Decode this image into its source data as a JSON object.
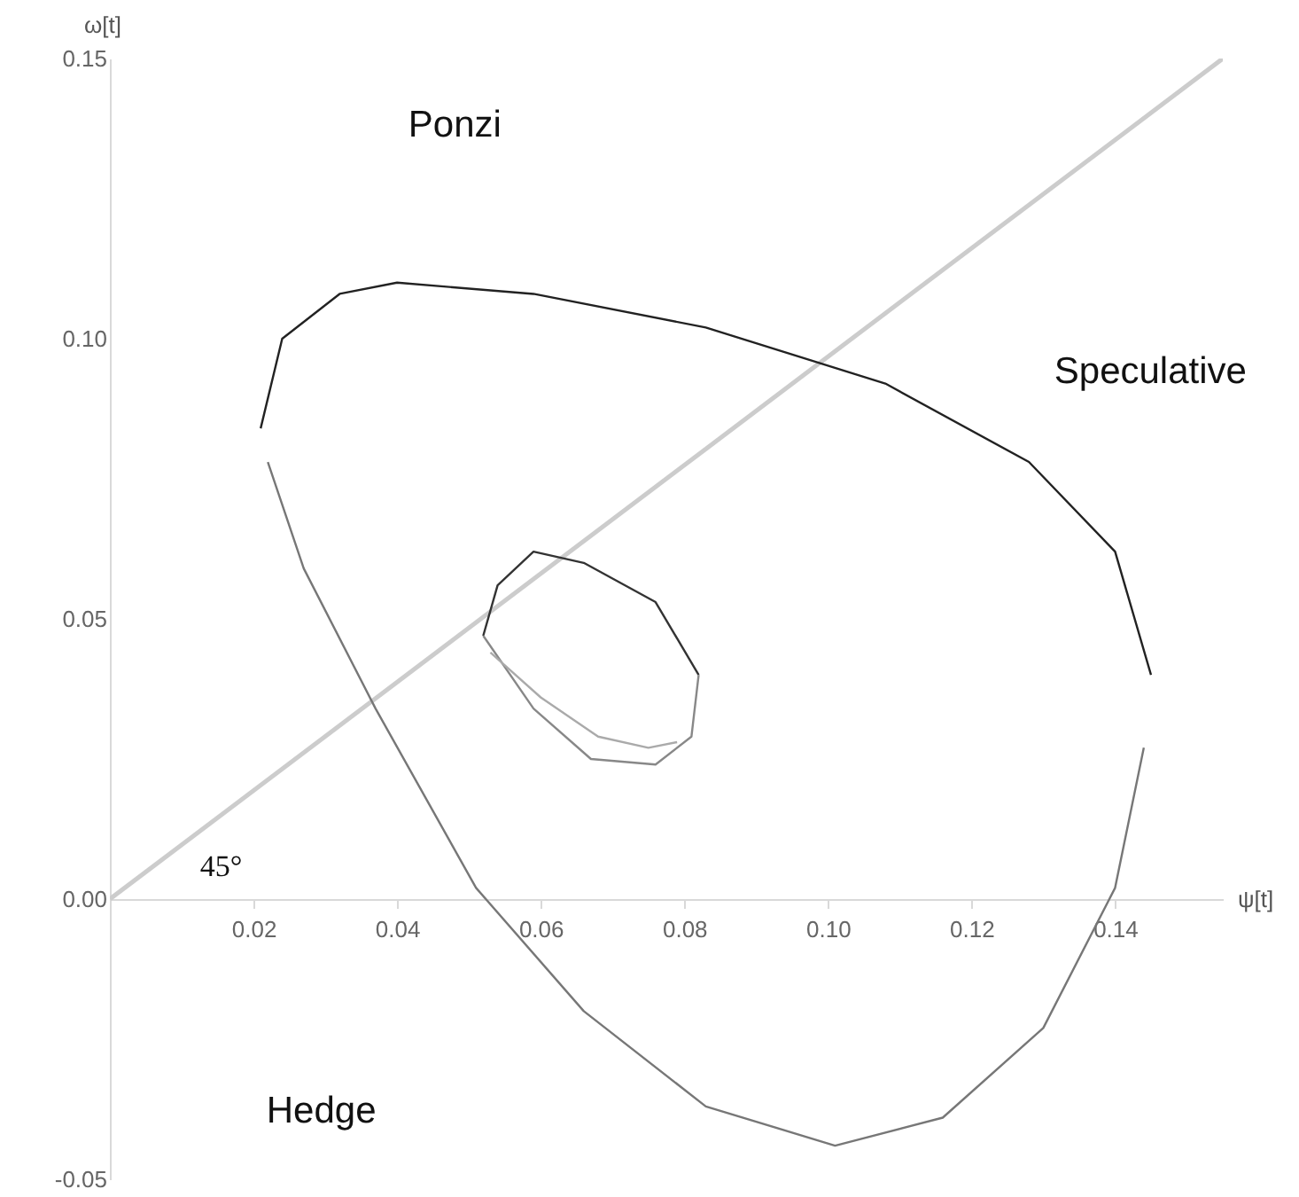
{
  "chart_data": {
    "type": "line",
    "xlabel": "ψ[t]",
    "ylabel": "ω[t]",
    "xlim": [
      0,
      0.155
    ],
    "ylim": [
      -0.05,
      0.15
    ],
    "xticks": [
      {
        "value": 0.02,
        "label": "0.02"
      },
      {
        "value": 0.04,
        "label": "0.04"
      },
      {
        "value": 0.06,
        "label": "0.06"
      },
      {
        "value": 0.08,
        "label": "0.08"
      },
      {
        "value": 0.1,
        "label": "0.10"
      },
      {
        "value": 0.12,
        "label": "0.12"
      },
      {
        "value": 0.14,
        "label": "0.14"
      }
    ],
    "yticks": [
      {
        "value": -0.05,
        "label": "-0.05"
      },
      {
        "value": 0,
        "label": "0.00"
      },
      {
        "value": 0.05,
        "label": "0.05"
      },
      {
        "value": 0.1,
        "label": "0.10"
      },
      {
        "value": 0.15,
        "label": "0.15"
      }
    ],
    "grid": false,
    "marker": "none",
    "series": [
      {
        "color": "#cccccc",
        "x": [
          0,
          0.155
        ],
        "values": [
          0,
          0.15
        ]
      },
      {
        "color": "#222222",
        "x": [
          0.021,
          0.024,
          0.032,
          0.04,
          0.059,
          0.083,
          0.108,
          0.128,
          0.14,
          0.145
        ],
        "values": [
          0.084,
          0.1,
          0.108,
          0.11,
          0.108,
          0.102,
          0.092,
          0.078,
          0.062,
          0.04
        ]
      },
      {
        "color": "#777777",
        "x": [
          0.022,
          0.027,
          0.037,
          0.051,
          0.066,
          0.083,
          0.101,
          0.116,
          0.13,
          0.14,
          0.144
        ],
        "values": [
          0.078,
          0.059,
          0.034,
          0.002,
          -0.02,
          -0.037,
          -0.044,
          -0.039,
          -0.023,
          0.002,
          0.027
        ]
      },
      {
        "color": "#333333",
        "x": [
          0.052,
          0.054,
          0.059,
          0.066,
          0.076,
          0.082
        ],
        "values": [
          0.047,
          0.056,
          0.062,
          0.06,
          0.053,
          0.04
        ]
      },
      {
        "color": "#888888",
        "x": [
          0.052,
          0.059,
          0.067,
          0.076,
          0.081,
          0.082
        ],
        "values": [
          0.047,
          0.034,
          0.025,
          0.024,
          0.029,
          0.04
        ]
      },
      {
        "color": "#aaaaaa",
        "x": [
          0.053,
          0.06,
          0.068,
          0.075,
          0.079
        ],
        "values": [
          0.044,
          0.036,
          0.029,
          0.027,
          0.028
        ]
      }
    ],
    "annotations": [
      "Ponzi",
      "Speculative",
      "Hedge",
      "45°"
    ]
  }
}
